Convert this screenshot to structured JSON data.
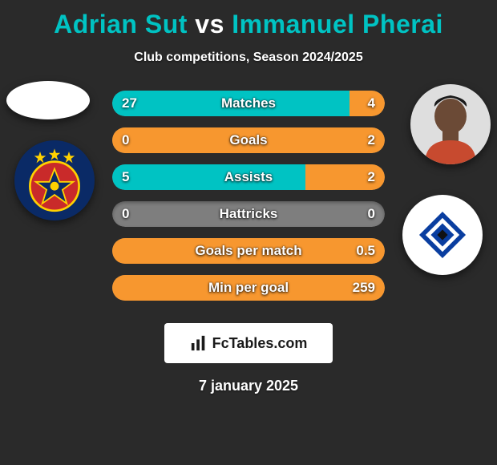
{
  "title": {
    "player1": "Adrian Sut",
    "vs": "vs",
    "player2": "Immanuel Pherai",
    "color1": "#00c3c3",
    "color_vs": "#ffffff",
    "color2": "#00c3c3"
  },
  "subtitle": "Club competitions, Season 2024/2025",
  "branding_text": "FcTables.com",
  "date": "7 january 2025",
  "colors": {
    "accent_left": "#00c3c3",
    "accent_right": "#f7972f",
    "bar_bg": "#7e7e7e",
    "page_bg": "#2a2a2a",
    "text": "#ffffff"
  },
  "club_left": {
    "bg": "#0a2a66",
    "star_fill": "#c92a2a",
    "star_outline": "#ffcc00"
  },
  "club_right": {
    "bg": "#ffffff",
    "diamond_outer": "#0a3ea0",
    "diamond_mid": "#ffffff",
    "diamond_inner": "#0a3ea0",
    "diamond_core": "#111111"
  },
  "bars": [
    {
      "label": "Matches",
      "left": "27",
      "right": "4",
      "left_pct": 87,
      "right_pct": 13
    },
    {
      "label": "Goals",
      "left": "0",
      "right": "2",
      "left_pct": 0,
      "right_pct": 100
    },
    {
      "label": "Assists",
      "left": "5",
      "right": "2",
      "left_pct": 71,
      "right_pct": 29
    },
    {
      "label": "Hattricks",
      "left": "0",
      "right": "0",
      "left_pct": 0,
      "right_pct": 0
    },
    {
      "label": "Goals per match",
      "left": "",
      "right": "0.5",
      "left_pct": 0,
      "right_pct": 100
    },
    {
      "label": "Min per goal",
      "left": "",
      "right": "259",
      "left_pct": 0,
      "right_pct": 100
    }
  ]
}
